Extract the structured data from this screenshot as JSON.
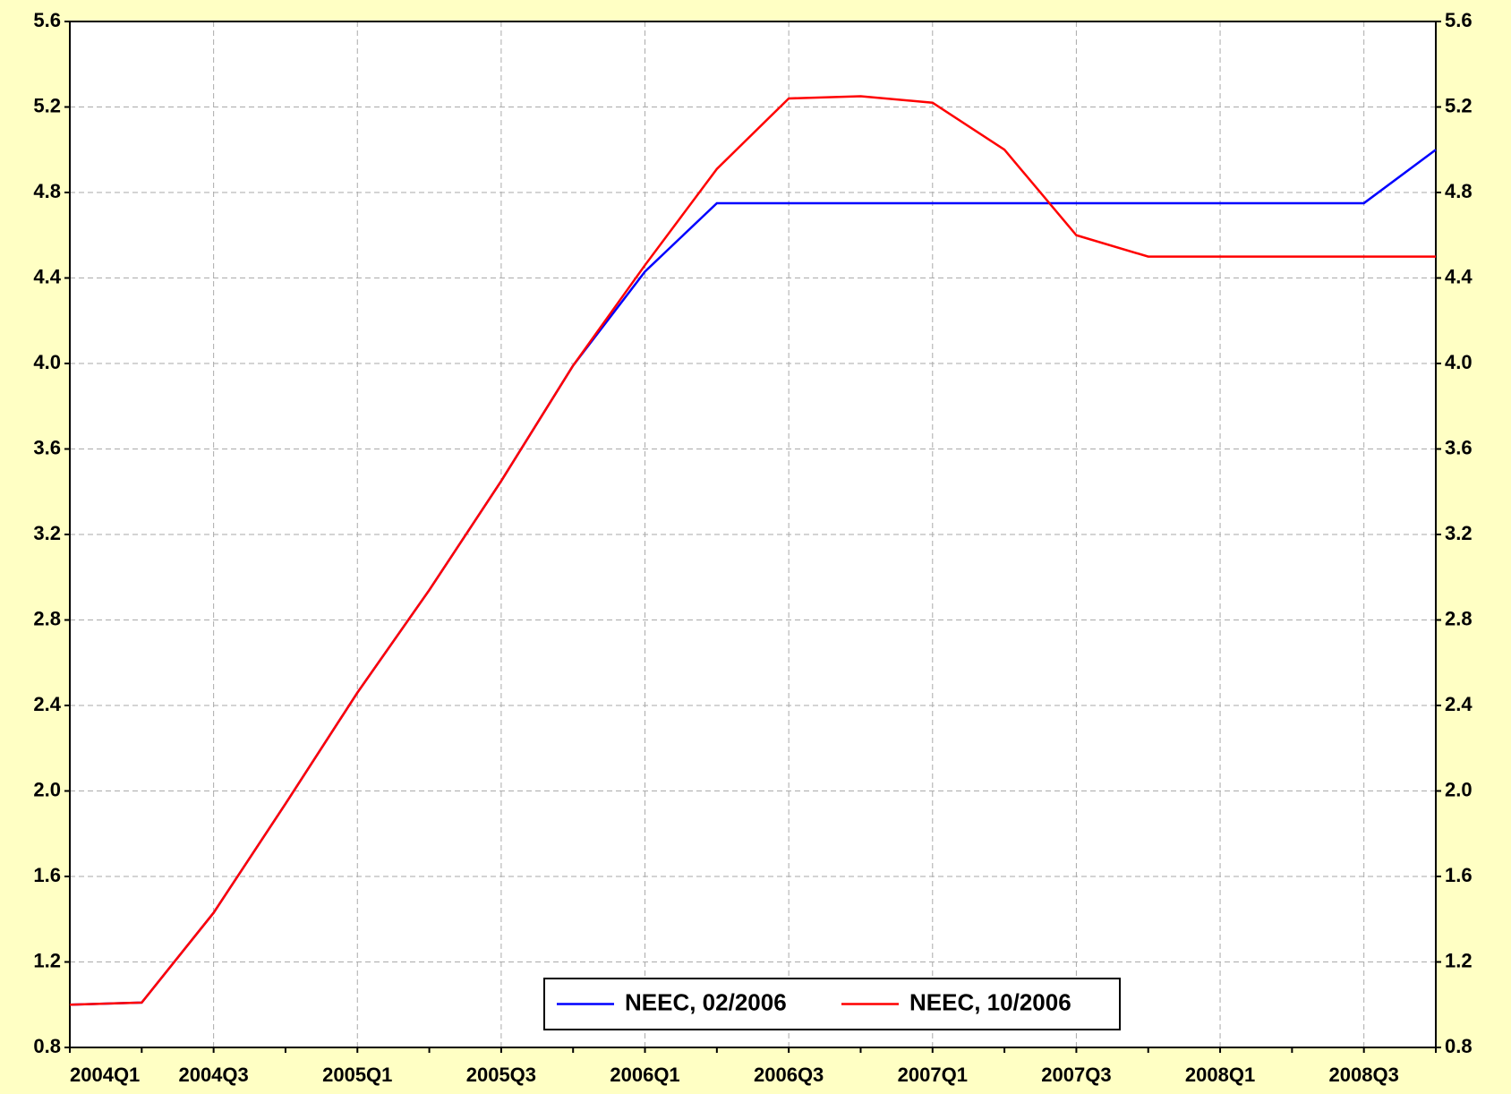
{
  "chart_data": {
    "type": "line",
    "categories": [
      "2004Q1",
      null,
      "2004Q3",
      null,
      "2005Q1",
      null,
      "2005Q3",
      null,
      "2006Q1",
      null,
      "2006Q3",
      null,
      "2007Q1",
      null,
      "2007Q3",
      null,
      "2008Q1",
      null,
      "2008Q3",
      null
    ],
    "series": [
      {
        "name": "NEEC, 02/2006",
        "color": "#0000ff",
        "values": [
          1.0,
          1.01,
          1.43,
          1.94,
          2.46,
          2.94,
          3.45,
          3.99,
          4.43,
          4.75,
          4.75,
          4.75,
          4.75,
          4.75,
          4.75,
          4.75,
          4.75,
          4.75,
          4.75,
          5.0
        ]
      },
      {
        "name": "NEEC, 10/2006",
        "color": "#ff0000",
        "values": [
          1.0,
          1.01,
          1.43,
          1.94,
          2.46,
          2.94,
          3.45,
          3.99,
          4.46,
          4.91,
          5.24,
          5.25,
          5.22,
          5.0,
          4.6,
          4.5,
          4.5,
          4.5,
          4.5,
          4.5
        ]
      }
    ],
    "ylim": [
      0.8,
      5.6
    ],
    "yticks": [
      0.8,
      1.2,
      1.6,
      {
        "value": 2,
        "label": "2.0"
      },
      2.4,
      2.8,
      3.2,
      3.6,
      {
        "value": 4,
        "label": "4.0"
      },
      4.4,
      4.8,
      5.2,
      5.6
    ],
    "y2lim": [
      0.8,
      5.6
    ],
    "y2ticks": [
      0.8,
      1.2,
      1.6,
      {
        "value": 2,
        "label": "2.0"
      },
      2.4,
      2.8,
      3.2,
      3.6,
      {
        "value": 4,
        "label": "4.0"
      },
      4.4,
      4.8,
      5.2,
      5.6
    ],
    "grid": true,
    "legend": "bottom"
  }
}
